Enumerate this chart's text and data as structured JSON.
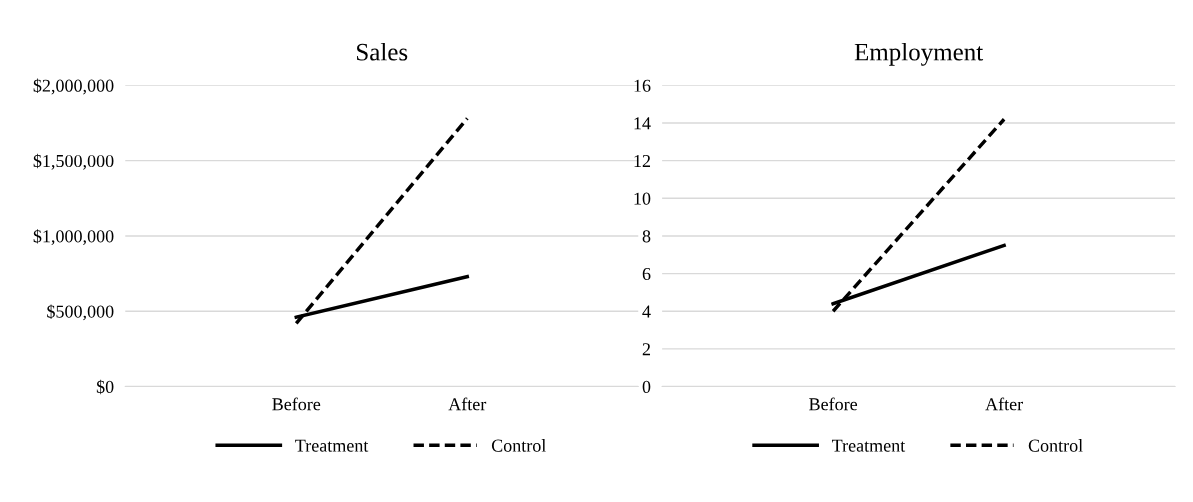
{
  "chart_data": [
    {
      "type": "line",
      "title": "Sales",
      "categories": [
        "Before",
        "After"
      ],
      "series": [
        {
          "name": "Treatment",
          "color": "#000000",
          "values": [
            460000,
            730000
          ],
          "line_style": "solid"
        },
        {
          "name": "Control",
          "color": "#000000",
          "values": [
            420000,
            1780000
          ],
          "line_style": "dashed"
        }
      ],
      "ylim": [
        0,
        2000000
      ],
      "yticks": [
        {
          "value": 0,
          "label": "$0"
        },
        {
          "value": 500000,
          "label": "$500,000"
        },
        {
          "value": 1000000,
          "label": "$1,000,000"
        },
        {
          "value": 1500000,
          "label": "$1,500,000"
        },
        {
          "value": 2000000,
          "label": "$2,000,000"
        }
      ],
      "grid": "y",
      "legend": "bottom",
      "marker": "none"
    },
    {
      "type": "line",
      "title": "Employment",
      "categories": [
        "Before",
        "After"
      ],
      "series": [
        {
          "name": "Treatment",
          "color": "#000000",
          "values": [
            4.4,
            7.5
          ],
          "line_style": "solid"
        },
        {
          "name": "Control",
          "color": "#000000",
          "values": [
            4.0,
            14.2
          ],
          "line_style": "dashed"
        }
      ],
      "ylim": [
        0,
        16
      ],
      "yticks": [
        0,
        2,
        4,
        6,
        8,
        10,
        12,
        14,
        16
      ],
      "grid": "y",
      "legend": "bottom",
      "marker": "none"
    }
  ]
}
